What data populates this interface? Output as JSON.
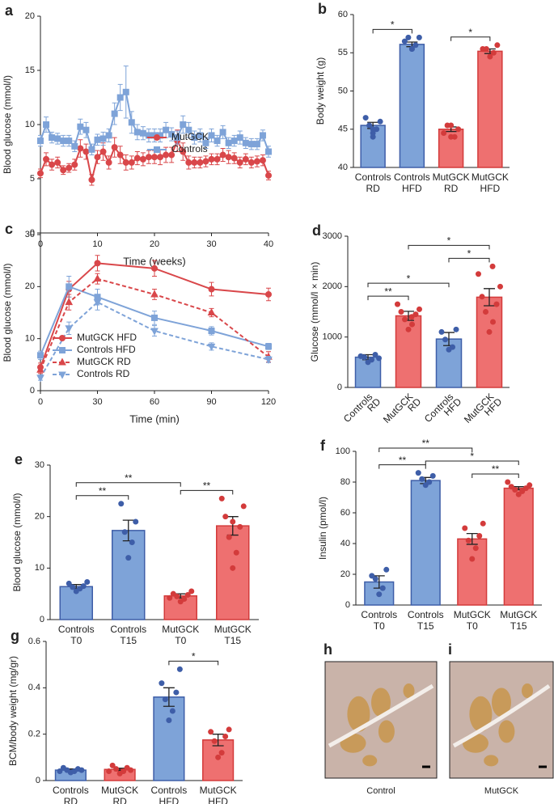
{
  "chart_data": [
    {
      "type": "line",
      "panel": "a",
      "xlabel": "Time (weeks)",
      "ylabel": "Blood glucose (mmol/l)",
      "xlim": [
        0,
        40
      ],
      "ylim": [
        0,
        20
      ],
      "xticks": [
        0,
        10,
        20,
        30,
        40
      ],
      "yticks": [
        0,
        5,
        10,
        15,
        20
      ],
      "legend": "center right",
      "x": [
        0,
        1,
        2,
        3,
        4,
        5,
        6,
        7,
        8,
        9,
        10,
        11,
        12,
        13,
        14,
        15,
        16,
        17,
        18,
        19,
        20,
        21,
        22,
        23,
        24,
        25,
        26,
        27,
        28,
        29,
        30,
        31,
        32,
        33,
        34,
        35,
        36,
        37,
        38,
        39,
        40
      ],
      "series": [
        {
          "name": "MutGCK",
          "color": "#d9474a",
          "marker": "circle",
          "dashed": false,
          "values": [
            5.5,
            6.8,
            6.3,
            6.5,
            5.8,
            6.0,
            6.3,
            7.8,
            7.5,
            4.9,
            7.0,
            7.5,
            6.5,
            7.9,
            7.2,
            6.5,
            6.5,
            6.9,
            6.8,
            7.0,
            7.0,
            7.0,
            7.2,
            7.2,
            8.5,
            7.5,
            6.5,
            6.5,
            6.5,
            6.6,
            6.8,
            6.8,
            7.2,
            7.0,
            6.9,
            6.5,
            6.8,
            6.5,
            6.6,
            6.7,
            5.3
          ],
          "errors": [
            0.4,
            0.6,
            0.5,
            0.5,
            0.4,
            0.4,
            0.5,
            0.8,
            0.7,
            0.5,
            0.6,
            0.8,
            0.6,
            0.9,
            0.8,
            0.7,
            0.6,
            0.6,
            0.6,
            0.6,
            0.6,
            0.7,
            0.7,
            0.7,
            1.0,
            0.8,
            0.6,
            0.5,
            0.5,
            0.5,
            0.5,
            0.5,
            0.6,
            0.6,
            0.5,
            0.5,
            0.5,
            0.5,
            0.5,
            0.5,
            0.4
          ]
        },
        {
          "name": "Controls",
          "color": "#7ea3d8",
          "marker": "square",
          "dashed": false,
          "values": [
            8.5,
            10.0,
            8.8,
            8.7,
            8.5,
            8.5,
            8.0,
            9.8,
            9.5,
            7.7,
            8.6,
            8.7,
            9.0,
            11.0,
            12.5,
            13.0,
            10.2,
            9.3,
            9.2,
            9.0,
            9.0,
            9.0,
            9.5,
            9.1,
            8.8,
            10.0,
            9.5,
            8.8,
            9.0,
            8.3,
            9.0,
            8.5,
            9.3,
            8.3,
            8.5,
            8.8,
            8.3,
            8.2,
            8.2,
            9.0,
            7.5
          ],
          "errors": [
            0.5,
            0.7,
            0.5,
            0.5,
            0.5,
            0.5,
            0.5,
            0.7,
            0.7,
            0.5,
            0.5,
            0.6,
            0.6,
            1.0,
            1.2,
            2.4,
            1.0,
            0.7,
            0.6,
            0.6,
            0.6,
            0.6,
            0.7,
            0.6,
            0.6,
            0.8,
            0.7,
            0.6,
            0.6,
            0.5,
            0.6,
            0.5,
            0.6,
            0.5,
            0.5,
            0.6,
            0.5,
            0.5,
            0.5,
            0.5,
            0.5
          ]
        }
      ]
    },
    {
      "type": "bar",
      "panel": "b",
      "ylabel": "Body weight (g)",
      "ylim": [
        40,
        60
      ],
      "yticks": [
        40,
        45,
        50,
        55,
        60
      ],
      "categories": [
        [
          "Controls",
          "RD"
        ],
        [
          "Controls",
          "HFD"
        ],
        [
          "MutGCK",
          "RD"
        ],
        [
          "MutGCK",
          "HFD"
        ]
      ],
      "colors": [
        "#7ea3d8",
        "#7ea3d8",
        "#ee7070",
        "#ee7070"
      ],
      "point_colors": [
        "#3e5ea8",
        "#3e5ea8",
        "#d33b3b",
        "#d33b3b"
      ],
      "values": [
        45.5,
        56.1,
        45.0,
        55.2
      ],
      "errors": [
        0.4,
        0.3,
        0.3,
        0.3
      ],
      "points": [
        [
          44,
          45,
          45.5,
          46,
          46.5,
          45,
          44.5
        ],
        [
          55.5,
          56,
          57,
          57,
          56.5,
          55.5
        ],
        [
          44,
          44,
          45.5,
          45,
          44.5,
          45.5
        ],
        [
          54.5,
          55,
          55.5,
          56,
          55.5
        ]
      ],
      "comparisons": [
        {
          "label": "*",
          "groups": [
            0,
            1
          ]
        },
        {
          "label": "*",
          "groups": [
            2,
            3
          ]
        }
      ]
    },
    {
      "type": "line",
      "panel": "c",
      "xlabel": "Time (min)",
      "ylabel": "Blood glucose (mmol/l)",
      "xlim": [
        0,
        120
      ],
      "ylim": [
        0,
        30
      ],
      "xticks": [
        0,
        30,
        60,
        90,
        120
      ],
      "yticks": [
        0,
        10,
        20,
        30
      ],
      "legend": "lower left",
      "x": [
        0,
        15,
        30,
        60,
        90,
        120
      ],
      "series": [
        {
          "name": "MutGCK HFD",
          "color": "#d9474a",
          "marker": "circle",
          "dashed": false,
          "values": [
            4.5,
            19.5,
            24.5,
            23.5,
            19.5,
            18.5
          ],
          "errors": [
            0.8,
            1.5,
            1.5,
            1.5,
            1.3,
            1.2
          ]
        },
        {
          "name": "Controls HFD",
          "color": "#7ea3d8",
          "marker": "square",
          "dashed": false,
          "values": [
            6.8,
            20,
            18,
            14,
            11.5,
            8.5
          ],
          "errors": [
            0.8,
            2.0,
            1.5,
            1.3,
            0.8,
            0.6
          ]
        },
        {
          "name": "MutGCK RD",
          "color": "#d9474a",
          "marker": "triangle",
          "dashed": true,
          "values": [
            4,
            17,
            21.5,
            18.5,
            15,
            6.5
          ],
          "errors": [
            0.7,
            1.5,
            1.0,
            1.0,
            0.8,
            1.0
          ]
        },
        {
          "name": "Controls RD",
          "color": "#7ea3d8",
          "marker": "triangle-down",
          "dashed": true,
          "values": [
            2.5,
            12,
            17,
            11.5,
            8.5,
            6
          ],
          "errors": [
            0.5,
            1.2,
            1.5,
            1.0,
            0.7,
            0.6
          ]
        }
      ]
    },
    {
      "type": "bar",
      "panel": "d",
      "ylabel": "Glucose (mmol/l × min)",
      "ylim": [
        0,
        3000
      ],
      "yticks": [
        0,
        1000,
        2000,
        3000
      ],
      "label_rotation": -45,
      "categories": [
        [
          "Controls",
          "RD"
        ],
        [
          "MutGCK",
          "RD"
        ],
        [
          "Controls",
          "HFD"
        ],
        [
          "MutGCK",
          "HFD"
        ]
      ],
      "colors": [
        "#7ea3d8",
        "#ee7070",
        "#7ea3d8",
        "#ee7070"
      ],
      "point_colors": [
        "#3e5ea8",
        "#d33b3b",
        "#3e5ea8",
        "#d33b3b"
      ],
      "values": [
        600,
        1420,
        960,
        1790
      ],
      "errors": [
        50,
        90,
        130,
        170
      ],
      "points": [
        [
          500,
          550,
          600,
          650,
          620,
          580
        ],
        [
          1150,
          1250,
          1350,
          1450,
          1500,
          1550,
          1650,
          1400
        ],
        [
          750,
          800,
          950,
          1150,
          1100
        ],
        [
          1100,
          1300,
          1500,
          1650,
          1800,
          2000,
          2250,
          2400
        ]
      ],
      "comparisons": [
        {
          "label": "**",
          "groups": [
            0,
            1
          ]
        },
        {
          "label": "*",
          "groups": [
            0,
            2
          ]
        },
        {
          "label": "*",
          "groups": [
            2,
            3
          ]
        },
        {
          "label": "*",
          "groups": [
            1,
            3
          ]
        }
      ]
    },
    {
      "type": "bar",
      "panel": "e",
      "ylabel": "Blood glucose (mmol/l)",
      "ylim": [
        0,
        30
      ],
      "yticks": [
        0,
        10,
        20,
        30
      ],
      "categories": [
        [
          "Controls",
          "T0"
        ],
        [
          "Controls",
          "T15"
        ],
        [
          "MutGCK",
          "T0"
        ],
        [
          "MutGCK",
          "T15"
        ]
      ],
      "colors": [
        "#7ea3d8",
        "#7ea3d8",
        "#ee7070",
        "#ee7070"
      ],
      "point_colors": [
        "#3e5ea8",
        "#3e5ea8",
        "#d33b3b",
        "#d33b3b"
      ],
      "values": [
        6.4,
        17.3,
        4.6,
        18.2
      ],
      "errors": [
        0.4,
        2.0,
        0.4,
        1.8
      ],
      "points": [
        [
          5.5,
          6,
          6.3,
          6.5,
          7,
          7.3
        ],
        [
          12,
          15,
          17,
          19,
          22.5
        ],
        [
          3.5,
          4,
          4.5,
          4.8,
          5,
          5.5,
          4.2
        ],
        [
          10,
          13,
          16,
          18,
          20,
          22,
          23.5,
          19
        ]
      ],
      "comparisons": [
        {
          "label": "**",
          "groups": [
            0,
            1
          ]
        },
        {
          "label": "**",
          "groups": [
            2,
            3
          ]
        },
        {
          "label": "**",
          "groups": [
            0,
            2
          ]
        }
      ]
    },
    {
      "type": "bar",
      "panel": "f",
      "ylabel": "Insulin (pmol/l)",
      "ylim": [
        0,
        100
      ],
      "yticks": [
        0,
        20,
        40,
        60,
        80,
        100
      ],
      "categories": [
        [
          "Controls",
          "T0"
        ],
        [
          "Controls",
          "T15"
        ],
        [
          "MutGCK",
          "T0"
        ],
        [
          "MutGCK",
          "T15"
        ]
      ],
      "colors": [
        "#7ea3d8",
        "#7ea3d8",
        "#ee7070",
        "#ee7070"
      ],
      "point_colors": [
        "#3e5ea8",
        "#3e5ea8",
        "#d33b3b",
        "#d33b3b"
      ],
      "values": [
        15,
        81,
        43,
        76
      ],
      "errors": [
        4,
        2,
        3.5,
        1
      ],
      "points": [
        [
          7,
          11,
          17,
          23,
          19
        ],
        [
          78,
          80,
          82,
          84,
          86
        ],
        [
          30,
          37,
          42,
          45,
          50,
          53
        ],
        [
          72,
          74,
          75,
          76,
          77,
          78,
          80
        ]
      ],
      "comparisons": [
        {
          "label": "**",
          "groups": [
            0,
            1
          ]
        },
        {
          "label": "**",
          "groups": [
            2,
            3
          ]
        },
        {
          "label": "*",
          "groups": [
            1,
            3
          ]
        },
        {
          "label": "**",
          "groups": [
            0,
            2
          ]
        }
      ]
    },
    {
      "type": "bar",
      "panel": "g",
      "ylabel": "BCM/body weight (mg/gr)",
      "ylim": [
        0,
        0.6
      ],
      "yticks": [
        0,
        0.2,
        0.4,
        0.6
      ],
      "categories": [
        [
          "Controls",
          "RD"
        ],
        [
          "MutGCK",
          "RD"
        ],
        [
          "Controls",
          "HFD"
        ],
        [
          "MutGCK",
          "HFD"
        ]
      ],
      "colors": [
        "#7ea3d8",
        "#ee7070",
        "#7ea3d8",
        "#ee7070"
      ],
      "point_colors": [
        "#3e5ea8",
        "#d33b3b",
        "#3e5ea8",
        "#d33b3b"
      ],
      "values": [
        0.045,
        0.048,
        0.36,
        0.175
      ],
      "errors": [
        0.005,
        0.005,
        0.04,
        0.025
      ],
      "points": [
        [
          0.035,
          0.04,
          0.045,
          0.05,
          0.055,
          0.045,
          0.04
        ],
        [
          0.03,
          0.04,
          0.05,
          0.055,
          0.065,
          0.045,
          0.04
        ],
        [
          0.26,
          0.3,
          0.35,
          0.38,
          0.42,
          0.48
        ],
        [
          0.1,
          0.12,
          0.17,
          0.19,
          0.21,
          0.22
        ]
      ],
      "comparisons": [
        {
          "label": "*",
          "groups": [
            2,
            3
          ]
        }
      ]
    },
    {
      "type": "image",
      "panel": "h",
      "caption": "Control"
    },
    {
      "type": "image",
      "panel": "i",
      "caption": "MutGCK"
    }
  ]
}
